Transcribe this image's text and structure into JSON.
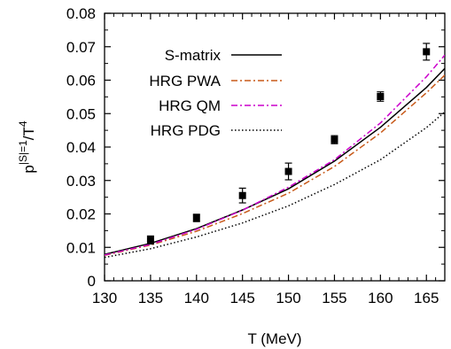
{
  "chart_data": {
    "type": "line",
    "xlabel": "T (MeV)",
    "ylabel": {
      "base": "p",
      "sup": "|S|=1",
      "rest": "/T",
      "rest_sup": "4"
    },
    "xlim": [
      130,
      167
    ],
    "ylim": [
      0,
      0.08
    ],
    "xticks": [
      130,
      135,
      140,
      145,
      150,
      155,
      160,
      165
    ],
    "xtick_labels": [
      "130",
      "135",
      "140",
      "145",
      "150",
      "155",
      "160",
      "165"
    ],
    "yticks": [
      0,
      0.01,
      0.02,
      0.03,
      0.04,
      0.05,
      0.06,
      0.07,
      0.08
    ],
    "ytick_labels": [
      "0",
      "0.01",
      "0.02",
      "0.03",
      "0.04",
      "0.05",
      "0.06",
      "0.07",
      "0.08"
    ],
    "legend_position": "top-left",
    "grid": false,
    "series": [
      {
        "name": "S-matrix",
        "color": "#000000",
        "dash": "solid",
        "x": [
          130,
          135,
          140,
          145,
          150,
          155,
          160,
          165,
          167
        ],
        "y": [
          0.0079,
          0.0112,
          0.0156,
          0.0212,
          0.0275,
          0.0358,
          0.0459,
          0.0578,
          0.0635
        ]
      },
      {
        "name": "HRG PWA",
        "color": "#c85a1a",
        "dash": "dashdot",
        "x": [
          130,
          135,
          140,
          145,
          150,
          155,
          160,
          165,
          167
        ],
        "y": [
          0.0076,
          0.0107,
          0.0148,
          0.0201,
          0.0262,
          0.0342,
          0.0442,
          0.0562,
          0.0615
        ]
      },
      {
        "name": "HRG QM",
        "color": "#cc00cc",
        "dash": "dashdot",
        "x": [
          130,
          135,
          140,
          145,
          150,
          155,
          160,
          165,
          167
        ],
        "y": [
          0.0077,
          0.0109,
          0.0154,
          0.0211,
          0.028,
          0.0362,
          0.0472,
          0.061,
          0.0675
        ]
      },
      {
        "name": "HRG PDG",
        "color": "#000000",
        "dash": "dotted",
        "x": [
          130,
          135,
          140,
          145,
          150,
          155,
          160,
          165,
          167
        ],
        "y": [
          0.007,
          0.0096,
          0.0131,
          0.0173,
          0.0224,
          0.0288,
          0.0362,
          0.0458,
          0.0505
        ]
      }
    ],
    "points": {
      "x": [
        135,
        140,
        145,
        150,
        155,
        160,
        165
      ],
      "y": [
        0.0122,
        0.0188,
        0.0255,
        0.0327,
        0.0422,
        0.0551,
        0.0685
      ],
      "err": [
        0.0012,
        0.0011,
        0.0022,
        0.0025,
        0.0012,
        0.0014,
        0.0025
      ]
    }
  }
}
